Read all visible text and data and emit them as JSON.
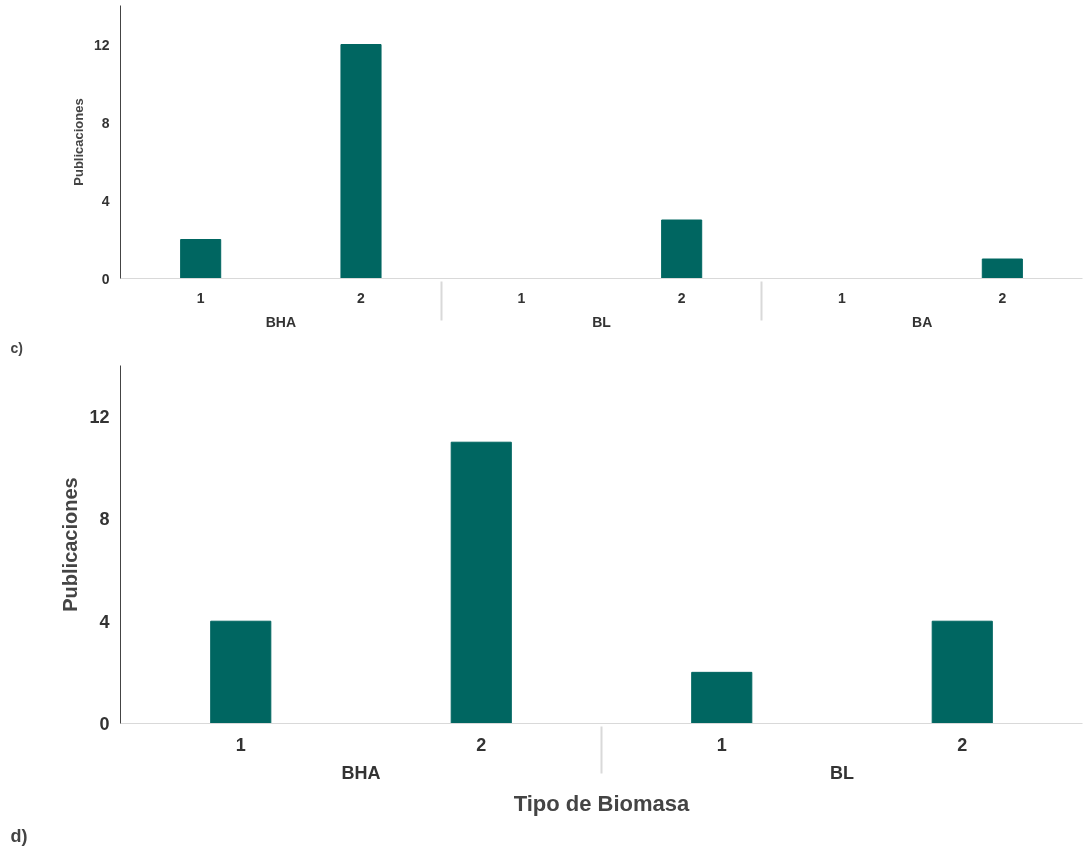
{
  "chart_data": [
    {
      "type": "bar",
      "ylabel": "Publicaciones",
      "categories": [
        "1",
        "2",
        "1",
        "2",
        "1",
        "2"
      ],
      "annotations": [
        "c)",
        "BHA",
        "BL",
        "BA"
      ],
      "values": [
        2,
        12,
        0,
        3,
        0,
        1
      ],
      "color": "#006661",
      "ylim": [
        0,
        14
      ],
      "yticks": [
        0,
        4,
        8,
        12
      ],
      "grid": false
    },
    {
      "type": "bar",
      "ylabel": "Publicaciones",
      "xlabel": "Tipo de Biomasa",
      "categories": [
        "1",
        "2",
        "1",
        "2"
      ],
      "annotations": [
        "d)",
        "BHA",
        "BL"
      ],
      "values": [
        4,
        11,
        2,
        4
      ],
      "color": "#006661",
      "ylim": [
        0,
        14
      ],
      "yticks": [
        0,
        4,
        8,
        12
      ],
      "grid": false
    }
  ]
}
